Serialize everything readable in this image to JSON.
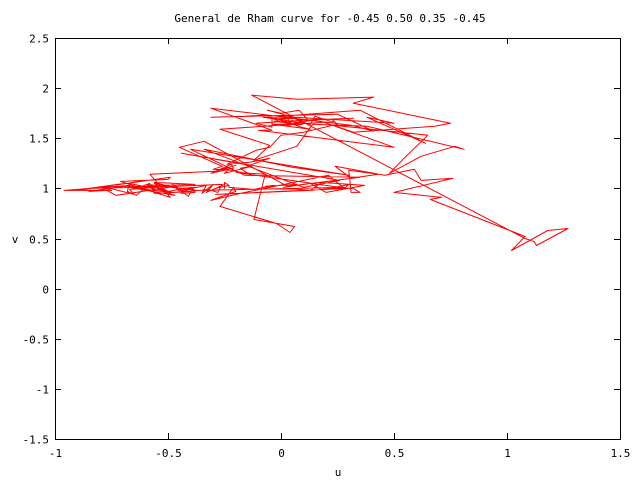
{
  "chart_data": {
    "type": "line",
    "title": "General de Rham curve for -0.45 0.50 0.35 -0.45",
    "xlabel": "u",
    "ylabel": "v",
    "xlim": [
      -1,
      1.5
    ],
    "ylim": [
      -1.5,
      2.5
    ],
    "x_ticks": [
      "-1",
      "-0.5",
      "0",
      "0.5",
      "1",
      "1.5"
    ],
    "y_ticks": [
      "-1.5",
      "-1",
      "-0.5",
      "0",
      "0.5",
      "1",
      "1.5",
      "2",
      "2.5"
    ],
    "grid": false,
    "legend": "none",
    "series": [
      {
        "color": "#ff0000",
        "x": [
          -0.38,
          0.28,
          0.13,
          -0.29,
          0.29,
          -0.2,
          -0.07,
          -0.12,
          0.06,
          0.04,
          -0.02,
          -0.27,
          -0.21,
          -0.2,
          -0.31,
          -0.18,
          0.21,
          0.28,
          0.3,
          0.22,
          0.32,
          0.35,
          0.31,
          0.3,
          0.43,
          0.31,
          0.24,
          0.46,
          0.59,
          0.62,
          0.76,
          0.5,
          0.71,
          0.66,
          1.08,
          1.02,
          1.18,
          1.27,
          1.13,
          1.12,
          1.08,
          -0.13,
          0.07,
          0.41,
          0.32,
          0.75,
          0.68,
          0.32,
          0.23,
          0.65,
          0.54,
          0.48,
          0.62,
          0.77,
          0.81,
          0.38,
          0.14,
          0.07,
          -0.12,
          -0.05,
          -0.27,
          0.19,
          0.5,
          -0.1,
          -0.04,
          -0.31,
          0.31,
          0.41,
          0.25,
          -0.31,
          -0.16,
          -0.08,
          0.5,
          0.38,
          0.64,
          0.35,
          0.0,
          0.1,
          0.32,
          0.12,
          0.08,
          0.0,
          -0.06,
          0.07,
          -0.02,
          -0.08,
          0.03,
          0.04,
          -0.03,
          0.0,
          -0.07,
          0.09,
          0.13,
          -0.04,
          0.05,
          0.02,
          0.09,
          0.06,
          0.11,
          0.07,
          0.04,
          0.05,
          0.02,
          0.17,
          -0.11,
          -0.04,
          -0.04,
          0.13,
          0.15,
          0.23,
          0.23,
          0.25,
          0.1,
          0.0,
          -0.05,
          -0.11,
          -0.24,
          -0.14,
          -0.05,
          -0.14,
          -0.44,
          0.26,
          0.1,
          -0.34,
          0.05,
          0.3,
          -0.4,
          -0.16,
          0.35,
          0.03,
          -0.34,
          -0.45,
          -0.26,
          -0.3,
          -0.22,
          -0.14,
          -0.18,
          -0.13,
          -0.25,
          -0.23,
          -0.31,
          -0.22,
          -0.21,
          -0.28,
          -0.2,
          -0.29,
          -0.58,
          -0.49,
          -0.71,
          -0.5,
          -0.49,
          -0.9,
          -0.69,
          -0.85,
          -0.47,
          -0.73,
          -0.77,
          -0.85,
          -0.7,
          -0.69,
          -0.5,
          -0.67,
          -0.65,
          -0.79,
          -0.75,
          -0.96,
          -0.67,
          -0.64,
          -0.58,
          -0.64,
          -0.68,
          -0.67,
          -0.57,
          -0.59,
          -0.49,
          -0.67,
          -0.47,
          -0.5,
          -0.48,
          -0.59,
          -0.26,
          -0.28,
          -0.32,
          -0.4,
          -0.47,
          -0.56,
          -0.57,
          -0.59,
          -0.38,
          -0.4,
          -0.38,
          -0.44,
          -0.48,
          -0.43,
          -0.39,
          -0.41,
          -0.45,
          -0.5,
          -0.56,
          -0.48,
          -0.56,
          -0.38,
          -0.52,
          -0.44,
          -0.38,
          -0.44,
          -0.33,
          -0.35,
          -0.3,
          -0.33,
          -0.25,
          -0.25,
          -0.25,
          -0.23,
          -0.29,
          -0.23,
          -0.23,
          -0.12,
          -0.03,
          -0.07,
          0.07,
          0.01,
          0.13,
          0.2,
          0.37,
          0.18,
          0.13,
          0.03
        ],
        "y": [
          0.98,
          1.01,
          0.98,
          0.94,
          1.0,
          1.16,
          1.14,
          0.69,
          0.62,
          0.56,
          0.65,
          0.82,
          1.01,
          0.97,
          0.88,
          0.95,
          1.13,
          1.0,
          1.04,
          1.0,
          1.0,
          0.96,
          0.96,
          1.18,
          1.14,
          1.1,
          1.22,
          1.13,
          1.19,
          1.08,
          1.1,
          0.96,
          0.91,
          0.89,
          0.52,
          0.38,
          0.58,
          0.6,
          0.43,
          0.47,
          0.5,
          1.93,
          1.89,
          1.91,
          1.85,
          1.65,
          1.62,
          1.56,
          1.63,
          1.53,
          1.29,
          1.15,
          1.32,
          1.42,
          1.39,
          1.62,
          1.64,
          1.42,
          1.28,
          1.43,
          1.59,
          1.66,
          1.41,
          1.58,
          1.58,
          1.8,
          1.63,
          1.57,
          1.74,
          1.71,
          1.72,
          1.73,
          1.65,
          1.71,
          1.45,
          1.78,
          1.72,
          1.68,
          1.7,
          1.68,
          1.78,
          1.75,
          1.78,
          1.7,
          1.69,
          1.71,
          1.7,
          1.65,
          1.67,
          1.66,
          1.73,
          1.61,
          1.59,
          1.64,
          1.64,
          1.62,
          1.66,
          1.7,
          1.65,
          1.63,
          1.65,
          1.68,
          1.64,
          1.69,
          1.65,
          1.61,
          1.7,
          1.64,
          1.72,
          1.66,
          1.68,
          1.64,
          1.56,
          1.53,
          1.41,
          1.38,
          1.24,
          1.26,
          1.3,
          1.23,
          1.35,
          1.08,
          1.01,
          1.39,
          1.21,
          1.13,
          1.39,
          1.13,
          1.11,
          1.02,
          1.47,
          1.41,
          1.22,
          1.19,
          1.18,
          1.14,
          1.2,
          1.22,
          1.15,
          1.19,
          1.15,
          1.24,
          1.2,
          1.18,
          1.23,
          1.17,
          1.14,
          0.91,
          1.07,
          1.09,
          1.11,
          0.98,
          1.05,
          1.0,
          1.02,
          0.93,
          0.98,
          0.97,
          1.02,
          1.02,
          1.02,
          0.99,
          0.94,
          1.02,
          0.98,
          0.98,
          1.03,
          1.0,
          1.05,
          0.93,
          0.97,
          1.05,
          1.0,
          1.04,
          0.96,
          1.01,
          0.93,
          0.95,
          0.96,
          1.01,
          1.04,
          0.96,
          0.99,
          0.97,
          0.96,
          0.95,
          1.0,
          1.04,
          0.98,
          1.01,
          0.96,
          0.95,
          1.04,
          0.97,
          1.0,
          0.92,
          0.99,
          0.97,
          1.05,
          1.01,
          1.06,
          1.04,
          1.03,
          1.0,
          1.01,
          0.98,
          1.03,
          0.95,
          1.04,
          0.96,
          1.04,
          1.0,
          1.06,
          1.03,
          1.0,
          1.03,
          1.01,
          0.99,
          1.03,
          1.02,
          1.04,
          1.01,
          1.05,
          0.96,
          1.03,
          1.06,
          0.98,
          1.0
        ]
      }
    ]
  }
}
